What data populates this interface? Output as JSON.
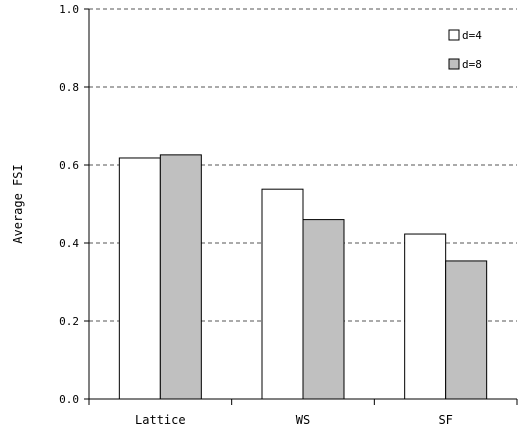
{
  "chart_data": {
    "type": "bar",
    "title": "",
    "xlabel": "",
    "ylabel": "Average FSI",
    "ylim": [
      0.0,
      1.0
    ],
    "yticks": [
      "0.0",
      "0.2",
      "0.4",
      "0.6",
      "0.8",
      "1.0"
    ],
    "categories": [
      "Lattice",
      "WS",
      "SF"
    ],
    "series": [
      {
        "name": "d=4",
        "values": [
          0.618,
          0.538,
          0.423
        ],
        "color": "#ffffff"
      },
      {
        "name": "d=8",
        "values": [
          0.626,
          0.46,
          0.354
        ],
        "color": "#c0c0c0"
      }
    ],
    "grid": "dashed horizontal at major ticks",
    "legend_position": "top-right"
  }
}
